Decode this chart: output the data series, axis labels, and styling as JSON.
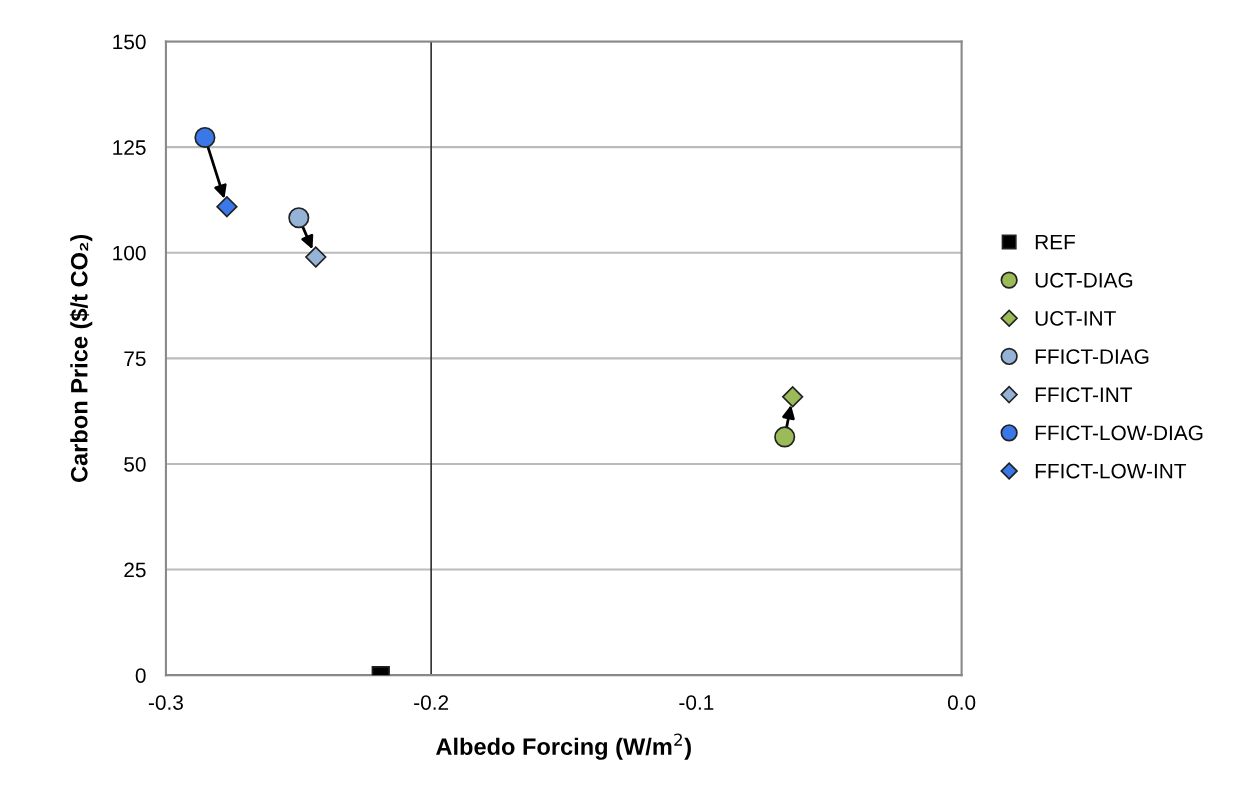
{
  "chart_data": {
    "type": "scatter",
    "xlabel": "Albedo Forcing (W/m$^{2}$)",
    "ylabel": "Carbon Price ($/t CO₂)",
    "xlim": [
      -0.3,
      0.0
    ],
    "xticks": [
      -0.3,
      -0.2,
      -0.1,
      {
        "value": 0.0,
        "label": "0.0"
      }
    ],
    "ylim": [
      0,
      150
    ],
    "yticks": [
      0,
      25,
      50,
      75,
      100,
      125,
      150
    ],
    "grid": "y",
    "legend": "right",
    "ref_lines": [
      {
        "axis": "x",
        "value": -0.2,
        "label": null
      }
    ],
    "series": [
      {
        "name": "REF",
        "color": "#000000",
        "marker": "square",
        "x": [
          -0.219
        ],
        "values": [
          0
        ]
      },
      {
        "name": "UCT-DIAG",
        "color": "#9bbb59",
        "marker": "circle",
        "x": [
          -0.0667
        ],
        "values": [
          56.4
        ]
      },
      {
        "name": "UCT-INT",
        "color": "#9bbb59",
        "marker": "diamond",
        "x": [
          -0.0637
        ],
        "values": [
          65.9
        ]
      },
      {
        "name": "FFICT-DIAG",
        "color": "#95b3d7",
        "marker": "circle",
        "x": [
          -0.2499
        ],
        "values": [
          108.3
        ]
      },
      {
        "name": "FFICT-INT",
        "color": "#95b3d7",
        "marker": "diamond",
        "x": [
          -0.2435
        ],
        "values": [
          99
        ]
      },
      {
        "name": "FFICT-LOW-DIAG",
        "color": "#3a78e8",
        "marker": "circle",
        "x": [
          -0.2853
        ],
        "values": [
          127.3
        ]
      },
      {
        "name": "FFICT-LOW-INT",
        "color": "#3a78e8",
        "marker": "diamond",
        "x": [
          -0.277
        ],
        "values": [
          110.9
        ]
      }
    ]
  }
}
